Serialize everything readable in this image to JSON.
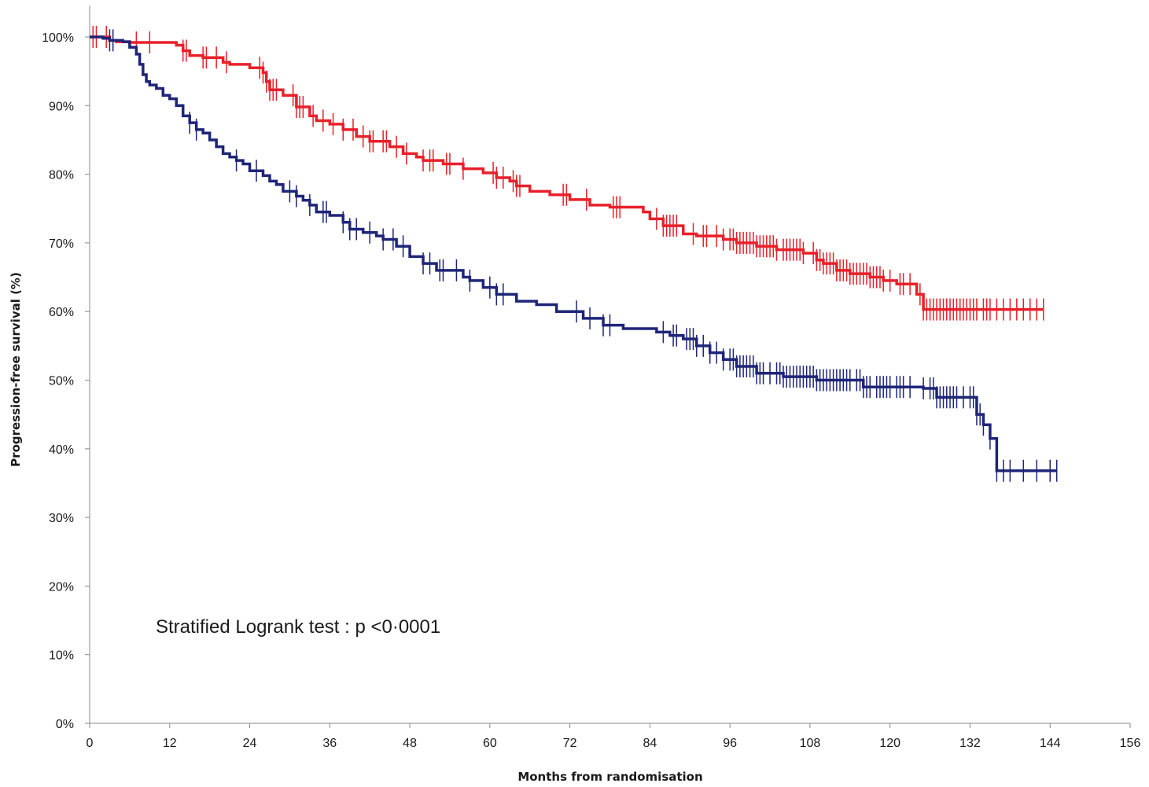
{
  "chart_data": {
    "type": "line",
    "subtype": "kaplan-meier",
    "title": "",
    "xlabel": "Months from randomisation",
    "ylabel": "Progression-free survival (%)",
    "xlim": [
      0,
      156
    ],
    "ylim": [
      0,
      100
    ],
    "xticks": [
      0,
      12,
      24,
      36,
      48,
      60,
      72,
      84,
      96,
      108,
      120,
      132,
      144,
      156
    ],
    "yticks": [
      0,
      10,
      20,
      30,
      40,
      50,
      60,
      70,
      80,
      90,
      100
    ],
    "ytick_labels": [
      "0%",
      "10%",
      "20%",
      "30%",
      "40%",
      "50%",
      "60%",
      "70%",
      "80%",
      "90%",
      "100%"
    ],
    "grid": false,
    "legend": "none",
    "annotation": "Stratified Logrank test : p <0·0001",
    "series": [
      {
        "color": "#e8202a",
        "x": [
          0,
          3,
          4,
          6,
          9,
          12,
          13,
          14,
          15,
          17,
          20,
          21,
          24,
          26,
          26.5,
          27,
          29,
          31,
          33,
          34,
          36,
          38,
          40,
          42,
          45,
          47,
          49,
          50,
          53,
          56,
          59,
          61,
          63,
          64,
          66,
          69,
          72,
          75,
          78,
          83,
          84,
          86,
          89,
          91,
          95,
          97,
          100,
          103,
          107,
          109,
          110,
          112,
          114,
          117,
          119,
          121,
          124,
          125,
          143
        ],
        "y": [
          100,
          99.5,
          99.3,
          99.2,
          99.2,
          99.2,
          98.8,
          98,
          97.3,
          97,
          96.3,
          96,
          95.5,
          94.8,
          93.5,
          92.3,
          91.5,
          89.8,
          88.5,
          87.8,
          87.3,
          86.5,
          85.5,
          84.8,
          84,
          83,
          82.5,
          82,
          81.5,
          80.8,
          80.2,
          79.5,
          79,
          78.3,
          77.5,
          77,
          76.3,
          75.5,
          75.2,
          74.5,
          73.5,
          72.5,
          71.3,
          71,
          70.5,
          70,
          69.5,
          69,
          68.5,
          67.5,
          67,
          66,
          65.5,
          65,
          64.5,
          64,
          62.5,
          60.3,
          60.3
        ],
        "censors": [
          0.5,
          1,
          2.5,
          7,
          9,
          14,
          14.5,
          17,
          17.5,
          19,
          20.5,
          25.5,
          26,
          26.5,
          27,
          27.5,
          28,
          30.5,
          31,
          31.5,
          32,
          33.5,
          35,
          36.5,
          38,
          39.5,
          41,
          42,
          42.5,
          44,
          44.5,
          46,
          47.5,
          50,
          51,
          51.5,
          53.5,
          54,
          56,
          60.5,
          61,
          62,
          63.5,
          64,
          64.5,
          71,
          71.5,
          74.5,
          78.5,
          79,
          79.5,
          85,
          86,
          86.5,
          87,
          87.5,
          88,
          90.5,
          92,
          92.5,
          94,
          95,
          96,
          96.5,
          97,
          97.5,
          98,
          98.5,
          99,
          99.5,
          100,
          100.5,
          101,
          101.5,
          102,
          102.5,
          103,
          104,
          104.5,
          105,
          105.5,
          106,
          106.5,
          107,
          108.5,
          109,
          109.5,
          110,
          110.5,
          111,
          111.5,
          112,
          112.5,
          113,
          113.5,
          114,
          114.5,
          115,
          115.5,
          116,
          116.5,
          117,
          117.5,
          118,
          118.5,
          119,
          120,
          121.5,
          122,
          123,
          124.5,
          125,
          125.5,
          126,
          126.5,
          127,
          127.5,
          128,
          128.5,
          129,
          129.5,
          130,
          130.5,
          131,
          131.5,
          132,
          132.5,
          133,
          134,
          134.5,
          135,
          136,
          137,
          138,
          139,
          140,
          141,
          142,
          143
        ]
      },
      {
        "color": "#1f2578",
        "x": [
          0,
          2,
          3,
          5,
          6,
          7,
          7.5,
          8,
          8.5,
          9,
          10,
          11,
          12,
          13,
          14,
          15,
          16,
          17,
          18,
          19,
          20,
          21,
          22,
          23,
          24,
          26,
          27,
          28,
          29,
          31,
          32,
          33,
          34,
          36,
          38,
          39,
          41,
          43,
          44,
          46,
          48,
          50,
          52,
          56,
          57,
          59,
          61,
          64,
          67,
          70,
          74,
          77,
          80,
          85,
          87,
          89,
          91,
          93,
          95,
          97,
          100,
          104,
          109,
          116,
          125,
          127,
          133,
          134,
          135,
          136
        ],
        "y": [
          100,
          99.8,
          99.5,
          99.3,
          98.5,
          97.5,
          96,
          94.5,
          93.5,
          93,
          92.5,
          91.5,
          91,
          90,
          88.5,
          87.5,
          86.5,
          86,
          85,
          84,
          83,
          82.5,
          82,
          81.5,
          80.5,
          79.8,
          79,
          78.5,
          77.5,
          76.8,
          76.2,
          75.5,
          74.5,
          74,
          73,
          72,
          71.5,
          71,
          70.5,
          69.5,
          68,
          67,
          66,
          65,
          64.5,
          63.5,
          62.5,
          61.5,
          61,
          60,
          59,
          58,
          57.5,
          57,
          56.5,
          56,
          55,
          54,
          53,
          52,
          51,
          50.5,
          50,
          49,
          48.8,
          47.5,
          45,
          43.5,
          41.5,
          36.8
        ],
        "censors": [
          3,
          3.5,
          15,
          16,
          22,
          25,
          30,
          31,
          33,
          35,
          35.5,
          38,
          39,
          40,
          42,
          44,
          45.5,
          47,
          50,
          51,
          52.5,
          53,
          55,
          57,
          60,
          61,
          62,
          73,
          75,
          77,
          78,
          86,
          87.5,
          88,
          89.5,
          90,
          90.5,
          91,
          92,
          93,
          94,
          95,
          96,
          96.5,
          97,
          97.5,
          98,
          98.5,
          99,
          99.5,
          100,
          100.5,
          101,
          102,
          103,
          103.5,
          104,
          104.5,
          105,
          105.5,
          106,
          106.5,
          107,
          107.5,
          108,
          108.5,
          109,
          109.5,
          110,
          110.5,
          111,
          111.5,
          112,
          112.5,
          113,
          113.5,
          114,
          115,
          115.5,
          116,
          116.5,
          117,
          118,
          118.5,
          119,
          119.5,
          120,
          121,
          121.5,
          122,
          123,
          125,
          126,
          126.5,
          127,
          127.5,
          128,
          128.5,
          129,
          129.5,
          130,
          131,
          132,
          132.5,
          133,
          133.5,
          134,
          135,
          136,
          137,
          138,
          140,
          142,
          144,
          145
        ],
        "end_x": 145
      }
    ]
  }
}
